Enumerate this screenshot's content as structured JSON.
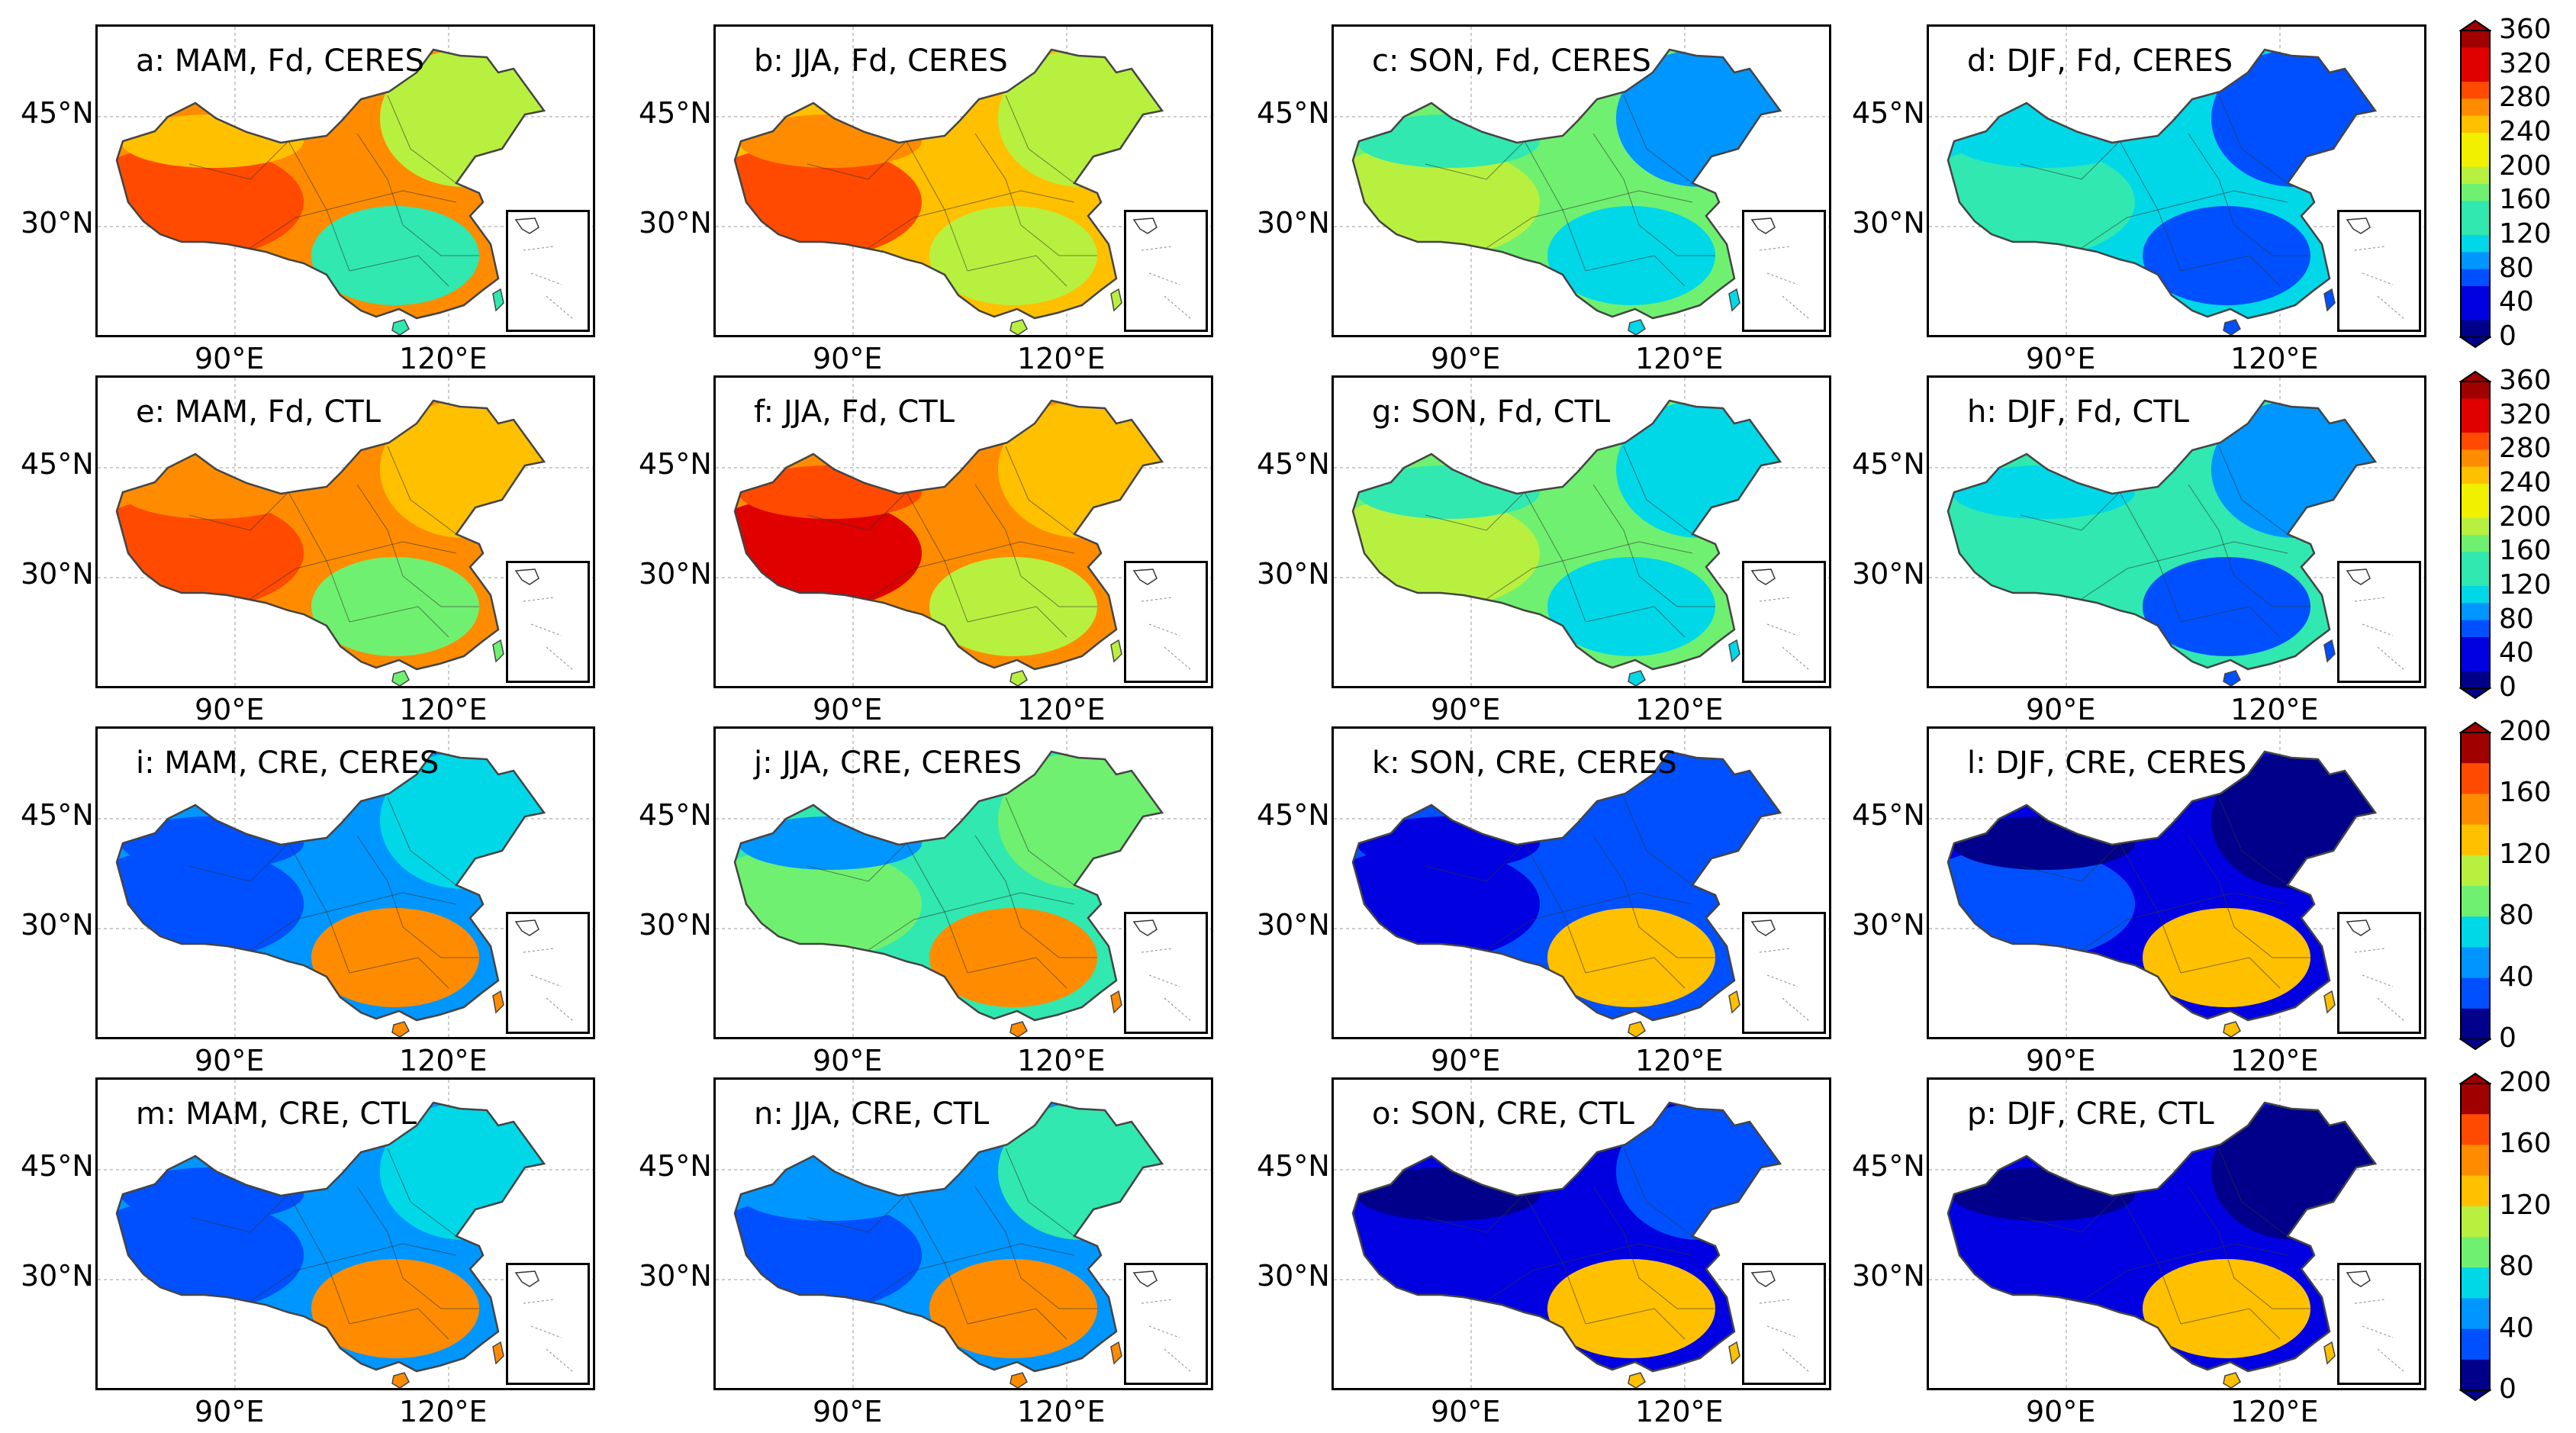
{
  "figure": {
    "panels": [
      {
        "label": "a: MAM, Fd, CERES",
        "scheme": "fd_mam_obs"
      },
      {
        "label": "b: JJA, Fd, CERES",
        "scheme": "fd_jja_obs"
      },
      {
        "label": "c: SON, Fd, CERES",
        "scheme": "fd_son_obs"
      },
      {
        "label": "d: DJF, Fd, CERES",
        "scheme": "fd_djf_obs"
      },
      {
        "label": "e: MAM, Fd, CTL",
        "scheme": "fd_mam_ctl"
      },
      {
        "label": "f: JJA, Fd, CTL",
        "scheme": "fd_jja_ctl"
      },
      {
        "label": "g: SON, Fd, CTL",
        "scheme": "fd_son_ctl"
      },
      {
        "label": "h: DJF, Fd, CTL",
        "scheme": "fd_djf_ctl"
      },
      {
        "label": "i: MAM, CRE, CERES",
        "scheme": "cre_mam_obs"
      },
      {
        "label": "j: JJA, CRE, CERES",
        "scheme": "cre_jja_obs"
      },
      {
        "label": "k: SON, CRE, CERES",
        "scheme": "cre_son_obs"
      },
      {
        "label": "l: DJF, CRE, CERES",
        "scheme": "cre_djf_obs"
      },
      {
        "label": "m: MAM, CRE, CTL",
        "scheme": "cre_mam_ctl"
      },
      {
        "label": "n: JJA, CRE, CTL",
        "scheme": "cre_jja_ctl"
      },
      {
        "label": "o: SON, CRE, CTL",
        "scheme": "cre_son_ctl"
      },
      {
        "label": "p: DJF, CRE, CTL",
        "scheme": "cre_djf_ctl"
      }
    ],
    "lat_ticks": [
      "45°N",
      "30°N"
    ],
    "lon_ticks": [
      "90°E",
      "120°E"
    ],
    "colorbars": [
      {
        "ticks": [
          "360",
          "320",
          "280",
          "240",
          "200",
          "160",
          "120",
          "80",
          "40",
          "0"
        ],
        "range": [
          0,
          360
        ]
      },
      {
        "ticks": [
          "360",
          "320",
          "280",
          "240",
          "200",
          "160",
          "120",
          "80",
          "40",
          "0"
        ],
        "range": [
          0,
          360
        ]
      },
      {
        "ticks": [
          "200",
          "160",
          "120",
          "80",
          "40",
          "0"
        ],
        "range": [
          0,
          200
        ]
      },
      {
        "ticks": [
          "200",
          "160",
          "120",
          "80",
          "40",
          "0"
        ],
        "range": [
          0,
          200
        ]
      }
    ],
    "palette": [
      "#00008b",
      "#0000e0",
      "#0050ff",
      "#0096ff",
      "#00d8e8",
      "#30e8b0",
      "#70f070",
      "#b8f040",
      "#f0f000",
      "#ffc000",
      "#ff8c00",
      "#ff4a00",
      "#e00000",
      "#a00000"
    ]
  }
}
